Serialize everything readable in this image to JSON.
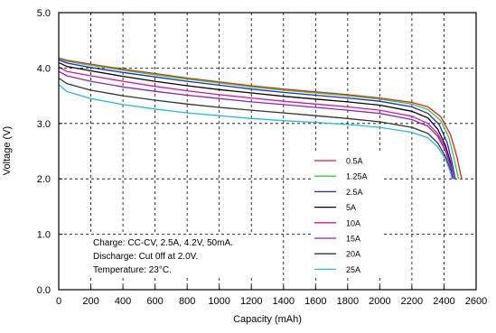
{
  "chart_data": {
    "type": "line",
    "title": "",
    "xlabel": "Capacity (mAh)",
    "ylabel": "Voltage (V)",
    "xlim": [
      0,
      2600
    ],
    "ylim": [
      0.0,
      5.0
    ],
    "x_ticks": [
      "0",
      "200",
      "400",
      "600",
      "800",
      "1000",
      "1200",
      "1400",
      "1600",
      "1800",
      "2000",
      "2200",
      "2400",
      "2600"
    ],
    "y_ticks": [
      "0.0",
      "1.0",
      "2.0",
      "3.0",
      "4.0",
      "5.0"
    ],
    "grid": true,
    "legend_position": "right",
    "annotation_lines": [
      "Charge: CC-CV, 2.5A, 4.2V, 50mA.",
      "Discharge: Cut 0ff at 2.0V.",
      "Temperature: 23°C."
    ],
    "series": [
      {
        "name": "0.5A",
        "color": "#e0201f",
        "points": [
          [
            0,
            4.18
          ],
          [
            50,
            4.14
          ],
          [
            200,
            4.07
          ],
          [
            400,
            3.98
          ],
          [
            600,
            3.9
          ],
          [
            800,
            3.82
          ],
          [
            1000,
            3.75
          ],
          [
            1200,
            3.68
          ],
          [
            1400,
            3.62
          ],
          [
            1600,
            3.57
          ],
          [
            1800,
            3.52
          ],
          [
            2000,
            3.46
          ],
          [
            2200,
            3.38
          ],
          [
            2300,
            3.3
          ],
          [
            2380,
            3.12
          ],
          [
            2440,
            2.8
          ],
          [
            2480,
            2.4
          ],
          [
            2510,
            2.0
          ]
        ]
      },
      {
        "name": "1.25A",
        "color": "#33cc33",
        "points": [
          [
            0,
            4.17
          ],
          [
            50,
            4.12
          ],
          [
            200,
            4.05
          ],
          [
            400,
            3.96
          ],
          [
            600,
            3.88
          ],
          [
            800,
            3.8
          ],
          [
            1000,
            3.73
          ],
          [
            1200,
            3.66
          ],
          [
            1400,
            3.6
          ],
          [
            1600,
            3.55
          ],
          [
            1800,
            3.5
          ],
          [
            2000,
            3.44
          ],
          [
            2200,
            3.35
          ],
          [
            2300,
            3.25
          ],
          [
            2380,
            3.05
          ],
          [
            2430,
            2.75
          ],
          [
            2460,
            2.4
          ],
          [
            2490,
            2.0
          ]
        ]
      },
      {
        "name": "2.5A",
        "color": "#2222dd",
        "points": [
          [
            0,
            4.15
          ],
          [
            50,
            4.09
          ],
          [
            200,
            4.01
          ],
          [
            400,
            3.92
          ],
          [
            600,
            3.84
          ],
          [
            800,
            3.76
          ],
          [
            1000,
            3.69
          ],
          [
            1200,
            3.62
          ],
          [
            1400,
            3.56
          ],
          [
            1600,
            3.51
          ],
          [
            1800,
            3.46
          ],
          [
            2000,
            3.4
          ],
          [
            2200,
            3.3
          ],
          [
            2300,
            3.18
          ],
          [
            2370,
            2.98
          ],
          [
            2420,
            2.65
          ],
          [
            2450,
            2.3
          ],
          [
            2470,
            2.0
          ]
        ]
      },
      {
        "name": "5A",
        "color": "#000000",
        "points": [
          [
            0,
            4.1
          ],
          [
            50,
            4.03
          ],
          [
            200,
            3.95
          ],
          [
            400,
            3.85
          ],
          [
            600,
            3.76
          ],
          [
            800,
            3.68
          ],
          [
            1000,
            3.61
          ],
          [
            1200,
            3.55
          ],
          [
            1400,
            3.49
          ],
          [
            1600,
            3.44
          ],
          [
            1800,
            3.39
          ],
          [
            2000,
            3.33
          ],
          [
            2200,
            3.22
          ],
          [
            2300,
            3.1
          ],
          [
            2360,
            2.9
          ],
          [
            2410,
            2.6
          ],
          [
            2440,
            2.3
          ],
          [
            2460,
            2.0
          ]
        ]
      },
      {
        "name": "10A",
        "color": "#dd1199",
        "points": [
          [
            0,
            4.02
          ],
          [
            50,
            3.94
          ],
          [
            200,
            3.86
          ],
          [
            400,
            3.76
          ],
          [
            600,
            3.67
          ],
          [
            800,
            3.59
          ],
          [
            1000,
            3.52
          ],
          [
            1200,
            3.46
          ],
          [
            1400,
            3.4
          ],
          [
            1600,
            3.35
          ],
          [
            1800,
            3.3
          ],
          [
            2000,
            3.24
          ],
          [
            2200,
            3.13
          ],
          [
            2300,
            3.0
          ],
          [
            2360,
            2.82
          ],
          [
            2410,
            2.55
          ],
          [
            2440,
            2.25
          ],
          [
            2460,
            2.0
          ]
        ]
      },
      {
        "name": "15A",
        "color": "#8822cc",
        "points": [
          [
            0,
            3.94
          ],
          [
            50,
            3.86
          ],
          [
            200,
            3.76
          ],
          [
            400,
            3.66
          ],
          [
            600,
            3.58
          ],
          [
            800,
            3.51
          ],
          [
            1000,
            3.45
          ],
          [
            1200,
            3.39
          ],
          [
            1400,
            3.34
          ],
          [
            1600,
            3.29
          ],
          [
            1800,
            3.24
          ],
          [
            2000,
            3.18
          ],
          [
            2200,
            3.07
          ],
          [
            2300,
            2.95
          ],
          [
            2360,
            2.77
          ],
          [
            2410,
            2.5
          ],
          [
            2440,
            2.22
          ],
          [
            2455,
            2.0
          ]
        ]
      },
      {
        "name": "20A",
        "color": "#333333",
        "points": [
          [
            0,
            3.82
          ],
          [
            50,
            3.72
          ],
          [
            200,
            3.6
          ],
          [
            400,
            3.5
          ],
          [
            600,
            3.42
          ],
          [
            800,
            3.35
          ],
          [
            1000,
            3.29
          ],
          [
            1200,
            3.24
          ],
          [
            1400,
            3.19
          ],
          [
            1600,
            3.14
          ],
          [
            1800,
            3.09
          ],
          [
            2000,
            3.03
          ],
          [
            2200,
            2.93
          ],
          [
            2300,
            2.82
          ],
          [
            2360,
            2.65
          ],
          [
            2410,
            2.4
          ],
          [
            2440,
            2.15
          ],
          [
            2450,
            2.0
          ]
        ]
      },
      {
        "name": "25A",
        "color": "#22bbdd",
        "points": [
          [
            0,
            3.7
          ],
          [
            50,
            3.58
          ],
          [
            200,
            3.45
          ],
          [
            400,
            3.34
          ],
          [
            600,
            3.26
          ],
          [
            800,
            3.19
          ],
          [
            1000,
            3.14
          ],
          [
            1200,
            3.09
          ],
          [
            1400,
            3.05
          ],
          [
            1600,
            3.02
          ],
          [
            1800,
            2.98
          ],
          [
            2000,
            2.93
          ],
          [
            2200,
            2.84
          ],
          [
            2300,
            2.74
          ],
          [
            2360,
            2.58
          ],
          [
            2410,
            2.35
          ],
          [
            2440,
            2.12
          ],
          [
            2450,
            2.0
          ]
        ]
      }
    ]
  }
}
